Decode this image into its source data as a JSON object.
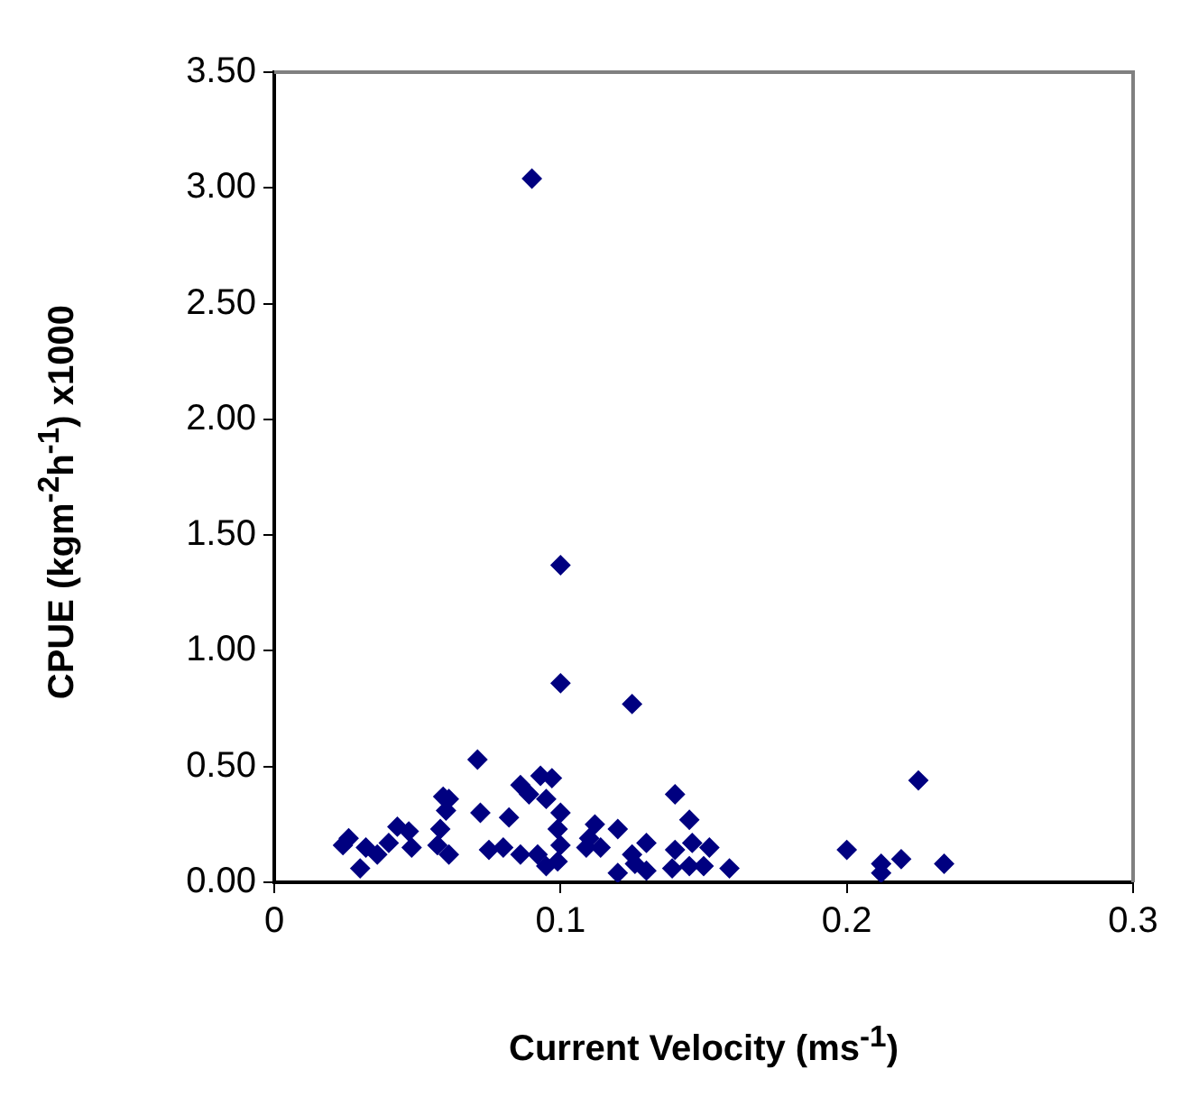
{
  "chart_data": {
    "type": "scatter",
    "xlabel": "Current Velocity (ms$^{-1}$)",
    "ylabel": "CPUE (kgm$^{-2}$h$^{-1}$) x1000",
    "marker": "diamond",
    "xlim": [
      0,
      0.3
    ],
    "xticks": [
      0,
      0.1,
      0.2,
      0.3
    ],
    "ylim": [
      0,
      3.5
    ],
    "yticks": [
      {
        "value": 0,
        "label": "0.00"
      },
      {
        "value": 0.5,
        "label": "0.50"
      },
      {
        "value": 1,
        "label": "1.00"
      },
      {
        "value": 1.5,
        "label": "1.50"
      },
      {
        "value": 2,
        "label": "2.00"
      },
      {
        "value": 2.5,
        "label": "2.50"
      },
      {
        "value": 3,
        "label": "3.00"
      },
      {
        "value": 3.5,
        "label": "3.50"
      }
    ],
    "series": [
      {
        "color": "#000080",
        "x": [
          0.071,
          0.024,
          0.026,
          0.03,
          0.032,
          0.036,
          0.04,
          0.043,
          0.047,
          0.048,
          0.059,
          0.061,
          0.06,
          0.058,
          0.057,
          0.061,
          0.072,
          0.075,
          0.08,
          0.082,
          0.086,
          0.086,
          0.089,
          0.093,
          0.097,
          0.095,
          0.092,
          0.095,
          0.1,
          0.099,
          0.1,
          0.099,
          0.125,
          0.112,
          0.12,
          0.11,
          0.114,
          0.109,
          0.125,
          0.13,
          0.12,
          0.126,
          0.13,
          0.14,
          0.145,
          0.146,
          0.14,
          0.152,
          0.139,
          0.145,
          0.15,
          0.159,
          0.225,
          0.2,
          0.212,
          0.212,
          0.219,
          0.234,
          0.09,
          0.1,
          0.1
        ],
        "values": [
          0.53,
          0.16,
          0.19,
          0.06,
          0.15,
          0.12,
          0.17,
          0.24,
          0.22,
          0.15,
          0.37,
          0.36,
          0.31,
          0.23,
          0.16,
          0.12,
          0.3,
          0.14,
          0.15,
          0.28,
          0.42,
          0.12,
          0.38,
          0.46,
          0.45,
          0.36,
          0.12,
          0.07,
          0.3,
          0.23,
          0.16,
          0.09,
          0.77,
          0.25,
          0.23,
          0.19,
          0.15,
          0.15,
          0.12,
          0.17,
          0.04,
          0.08,
          0.05,
          0.38,
          0.27,
          0.17,
          0.14,
          0.15,
          0.06,
          0.07,
          0.07,
          0.06,
          0.44,
          0.14,
          0.08,
          0.04,
          0.1,
          0.08,
          3.04,
          1.37,
          0.86
        ]
      }
    ]
  }
}
